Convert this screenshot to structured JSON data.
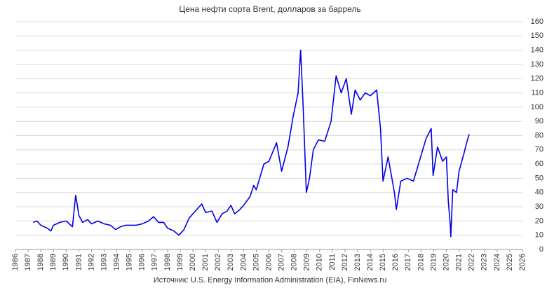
{
  "chart_data": {
    "type": "line",
    "title": "Цена нефти сорта Brent, долларов за баррель",
    "source": "Источник: U.S. Energy Information Administration (EIA), FinNews.ru",
    "x": [
      1987.4,
      1987.7,
      1988.0,
      1988.5,
      1988.8,
      1989.0,
      1989.5,
      1990.0,
      1990.5,
      1990.75,
      1990.85,
      1991.0,
      1991.3,
      1991.7,
      1992.0,
      1992.5,
      1993.0,
      1993.5,
      1993.9,
      1994.3,
      1994.7,
      1995.0,
      1995.5,
      1996.0,
      1996.5,
      1996.9,
      1997.3,
      1997.7,
      1998.0,
      1998.5,
      1998.9,
      1999.3,
      1999.7,
      2000.0,
      2000.7,
      2001.0,
      2001.5,
      2001.9,
      2002.3,
      2002.7,
      2003.0,
      2003.3,
      2003.7,
      2004.0,
      2004.5,
      2004.8,
      2005.0,
      2005.6,
      2006.0,
      2006.6,
      2007.0,
      2007.5,
      2007.9,
      2008.3,
      2008.5,
      2008.7,
      2008.95,
      2009.2,
      2009.5,
      2009.9,
      2010.4,
      2010.9,
      2011.3,
      2011.7,
      2012.1,
      2012.5,
      2012.8,
      2013.2,
      2013.6,
      2014.0,
      2014.5,
      2014.8,
      2015.0,
      2015.4,
      2015.9,
      2016.05,
      2016.4,
      2016.9,
      2017.4,
      2017.9,
      2018.4,
      2018.8,
      2018.95,
      2019.3,
      2019.7,
      2020.0,
      2020.15,
      2020.3,
      2020.35,
      2020.5,
      2020.8,
      2021.0,
      2021.4,
      2021.6,
      2021.8
    ],
    "series": [
      {
        "name": "Brent",
        "color": "#0000ee",
        "values": [
          19,
          20,
          17,
          15,
          13,
          17,
          19,
          20,
          16,
          38,
          33,
          24,
          19,
          21,
          18,
          20,
          18,
          17,
          14,
          16,
          17,
          17,
          17,
          18,
          20,
          23,
          19,
          19,
          15,
          13,
          10,
          14,
          22,
          25,
          32,
          26,
          27,
          19,
          25,
          27,
          31,
          25,
          28,
          31,
          37,
          45,
          42,
          60,
          62,
          75,
          55,
          72,
          93,
          110,
          140,
          100,
          40,
          50,
          70,
          77,
          76,
          90,
          122,
          110,
          120,
          95,
          112,
          105,
          110,
          108,
          112,
          85,
          48,
          65,
          40,
          28,
          48,
          50,
          48,
          63,
          78,
          85,
          52,
          72,
          62,
          65,
          34,
          18,
          9,
          42,
          40,
          55,
          68,
          75,
          81
        ]
      }
    ],
    "xlim": [
      1986,
      2026
    ],
    "xticks": [
      1986,
      1987,
      1988,
      1989,
      1990,
      1991,
      1992,
      1993,
      1994,
      1995,
      1996,
      1997,
      1998,
      1999,
      2000,
      2001,
      2002,
      2003,
      2004,
      2005,
      2006,
      2007,
      2008,
      2009,
      2010,
      2011,
      2012,
      2013,
      2014,
      2015,
      2016,
      2017,
      2018,
      2019,
      2020,
      2021,
      2022,
      2023,
      2024,
      2025,
      2026
    ],
    "ylim": [
      0,
      160
    ],
    "yticks": [
      0,
      10,
      20,
      30,
      40,
      50,
      60,
      70,
      80,
      90,
      100,
      110,
      120,
      130,
      140,
      150,
      160
    ],
    "grid": true
  }
}
